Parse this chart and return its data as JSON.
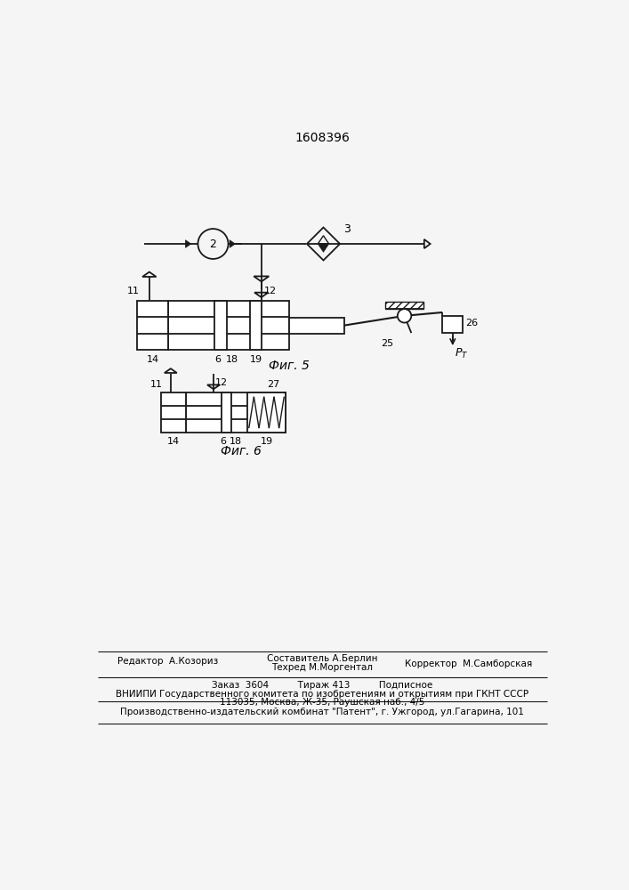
{
  "title": "1608396",
  "fig5_label": "Фиг. 5",
  "fig6_label": "Фиг. 6",
  "background_color": "#f5f5f5",
  "line_color": "#1a1a1a",
  "editor_line": "Редактор  А.Козориз",
  "sostavitel": "Составитель А.Берлин",
  "tekhred": "Техред М.Моргентал",
  "korrektor": "Корректор  М.Самборская",
  "order_line": "Заказ  3604          Тираж 413          Подписное",
  "vnipi_line": "ВНИИПИ Государственного комитета по изобретениям и открытиям при ГКНТ СССР",
  "address_line": "113035, Москва, Ж-35, Раушская наб., 4/5",
  "factory_line": "Производственно-издательский комбинат \"Патент\", г. Ужгород, ул.Гагарина, 101"
}
